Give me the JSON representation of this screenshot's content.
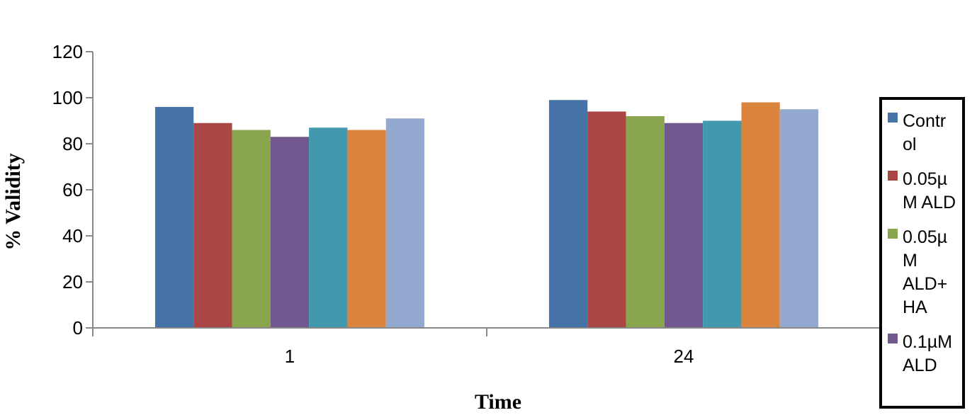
{
  "chart_data": {
    "type": "bar",
    "title": "",
    "xlabel": "Time",
    "ylabel": "% Validity",
    "ylim": [
      0,
      120
    ],
    "yticks": [
      0,
      20,
      40,
      60,
      80,
      100,
      120
    ],
    "categories": [
      "1",
      "24"
    ],
    "grid": false,
    "legend_position": "right",
    "series": [
      {
        "name": "Control",
        "legend_lines": [
          "Contr",
          "ol"
        ],
        "color": "#4572A7",
        "values": [
          96,
          99
        ]
      },
      {
        "name": "0.05µM ALD",
        "legend_lines": [
          "0.05µ",
          "M ALD"
        ],
        "color": "#AA4643",
        "values": [
          89,
          94
        ]
      },
      {
        "name": "0.05µM ALD+HA",
        "legend_lines": [
          "0.05µ",
          "M",
          "ALD+",
          "HA"
        ],
        "color": "#89A54E",
        "values": [
          86,
          92
        ]
      },
      {
        "name": "0.1µM ALD",
        "legend_lines": [
          "0.1µM",
          "ALD"
        ],
        "color": "#71588F",
        "values": [
          83,
          89
        ]
      },
      {
        "name": "",
        "legend_lines": [],
        "color": "#4198AF",
        "values": [
          87,
          90
        ]
      },
      {
        "name": "",
        "legend_lines": [],
        "color": "#DB843D",
        "values": [
          86,
          98
        ]
      },
      {
        "name": "",
        "legend_lines": [],
        "color": "#93A9CF",
        "values": [
          91,
          95
        ]
      }
    ]
  }
}
